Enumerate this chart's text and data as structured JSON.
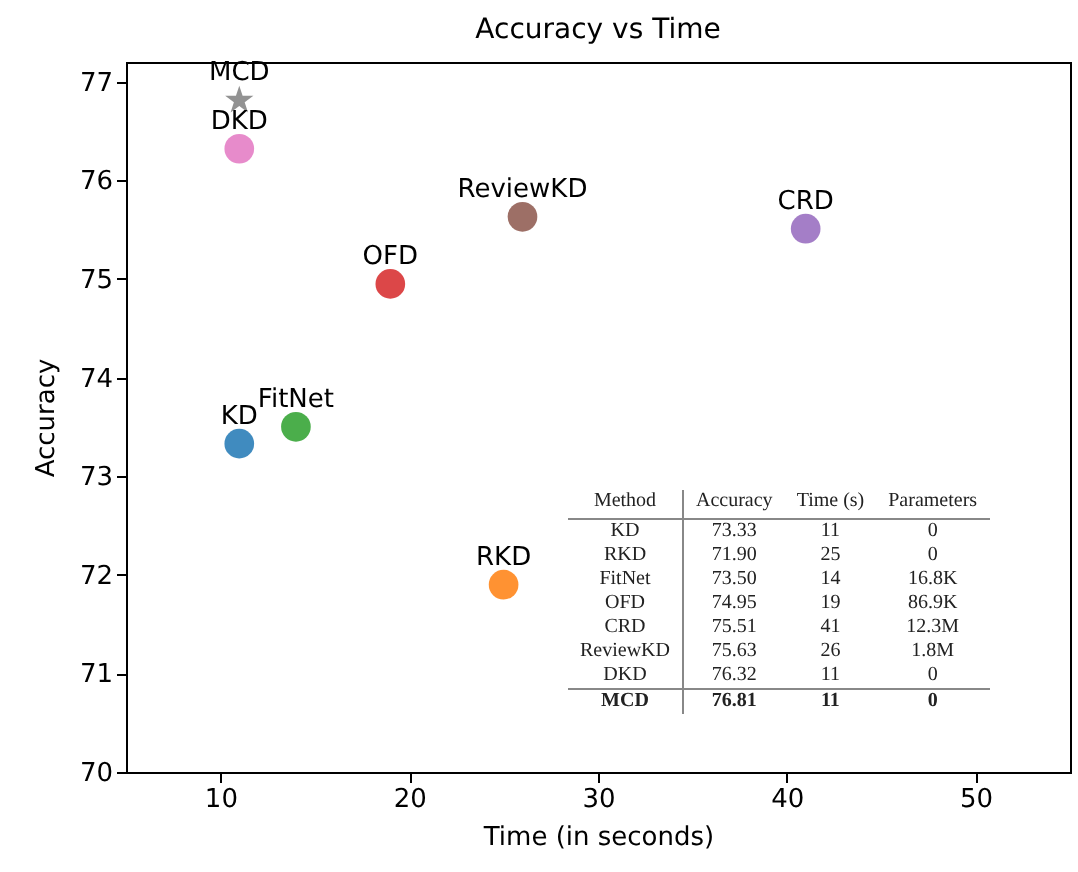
{
  "chart_data": [
    {
      "type": "scatter",
      "title": "Accuracy vs Time",
      "xlabel": "Time (in seconds)",
      "ylabel": "Accuracy",
      "xlim": [
        5,
        55
      ],
      "xticks": [
        10,
        20,
        30,
        40,
        50
      ],
      "ylim": [
        70,
        77.2
      ],
      "yticks": [
        70,
        71,
        72,
        73,
        74,
        75,
        76,
        77
      ],
      "grid": false,
      "series": [
        {
          "name": "KD",
          "color": "#1f77b4",
          "marker": "circle",
          "x": [
            11
          ],
          "values": [
            73.33
          ]
        },
        {
          "name": "RKD",
          "color": "#ff7f0e",
          "marker": "circle",
          "x": [
            25
          ],
          "values": [
            71.9
          ]
        },
        {
          "name": "FitNet",
          "color": "#2ca02c",
          "marker": "circle",
          "x": [
            14
          ],
          "values": [
            73.5
          ]
        },
        {
          "name": "OFD",
          "color": "#d62728",
          "marker": "circle",
          "x": [
            19
          ],
          "values": [
            74.95
          ]
        },
        {
          "name": "CRD",
          "color": "#9467bd",
          "marker": "circle",
          "x": [
            41
          ],
          "values": [
            75.51
          ]
        },
        {
          "name": "ReviewKD",
          "color": "#8c564b",
          "marker": "circle",
          "x": [
            26
          ],
          "values": [
            75.63
          ]
        },
        {
          "name": "DKD",
          "color": "#e377c2",
          "marker": "circle",
          "x": [
            11
          ],
          "values": [
            76.32
          ]
        },
        {
          "name": "MCD",
          "color": "#7f7f7f",
          "marker": "star",
          "x": [
            11
          ],
          "values": [
            76.81
          ]
        }
      ]
    },
    {
      "type": "other",
      "annotations": [
        "Method",
        "Accuracy",
        "Time (s)",
        "Parameters",
        "KD",
        "73.33",
        "11",
        "0",
        "RKD",
        "71.90",
        "25",
        "0",
        "FitNet",
        "73.50",
        "14",
        "16.8K",
        "OFD",
        "74.95",
        "19",
        "86.9K",
        "CRD",
        "75.51",
        "41",
        "12.3M",
        "ReviewKD",
        "75.63",
        "26",
        "1.8M",
        "DKD",
        "76.32",
        "11",
        "0",
        "MCD",
        "76.81",
        "11",
        "0"
      ]
    }
  ]
}
